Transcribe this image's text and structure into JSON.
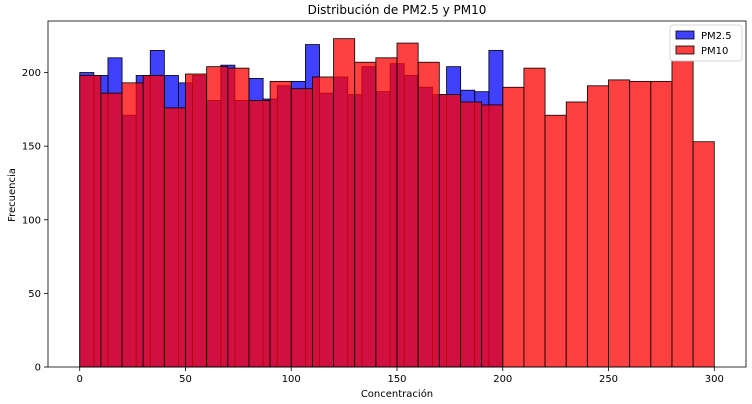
{
  "chart_data": {
    "type": "bar",
    "title": "Distribución de PM2.5 y PM10",
    "xlabel": "Concentración",
    "ylabel": "Frecuencia",
    "xlim": [
      -15,
      315
    ],
    "ylim": [
      0,
      235
    ],
    "xticks": [
      0,
      50,
      100,
      150,
      200,
      250,
      300
    ],
    "yticks": [
      0,
      50,
      100,
      150,
      200
    ],
    "legend_position": "top-right",
    "grid": false,
    "series": [
      {
        "name": "PM2.5",
        "color": "#0000ff",
        "bin_start": 0,
        "bin_width": 6.67,
        "values": [
          200,
          198,
          210,
          171,
          198,
          215,
          198,
          193,
          198,
          181,
          205,
          181,
          196,
          182,
          191,
          194,
          219,
          186,
          197,
          185,
          204,
          187,
          206,
          198,
          190,
          185,
          204,
          188,
          187,
          215
        ]
      },
      {
        "name": "PM10",
        "color": "#ff0000",
        "bin_start": 0,
        "bin_width": 10,
        "values": [
          198,
          186,
          193,
          198,
          176,
          199,
          204,
          203,
          181,
          194,
          189,
          197,
          223,
          207,
          210,
          220,
          207,
          185,
          180,
          178,
          190,
          203,
          171,
          180,
          191,
          195,
          194,
          194,
          208,
          153
        ]
      }
    ]
  }
}
